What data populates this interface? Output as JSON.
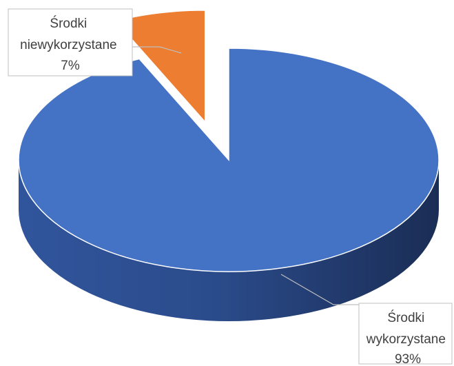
{
  "chart_data": {
    "type": "pie",
    "style": "3d-exploded",
    "title": "",
    "slices": [
      {
        "label_lines": [
          "Środki",
          "wykorzystane"
        ],
        "percent_label": "93%",
        "value": 93,
        "color": "#4472c4"
      },
      {
        "label_lines": [
          "Środki",
          "niewykorzystane"
        ],
        "percent_label": "7%",
        "value": 7,
        "color": "#ed7d31"
      }
    ],
    "start_angle_deg": 0,
    "legend": "none"
  }
}
